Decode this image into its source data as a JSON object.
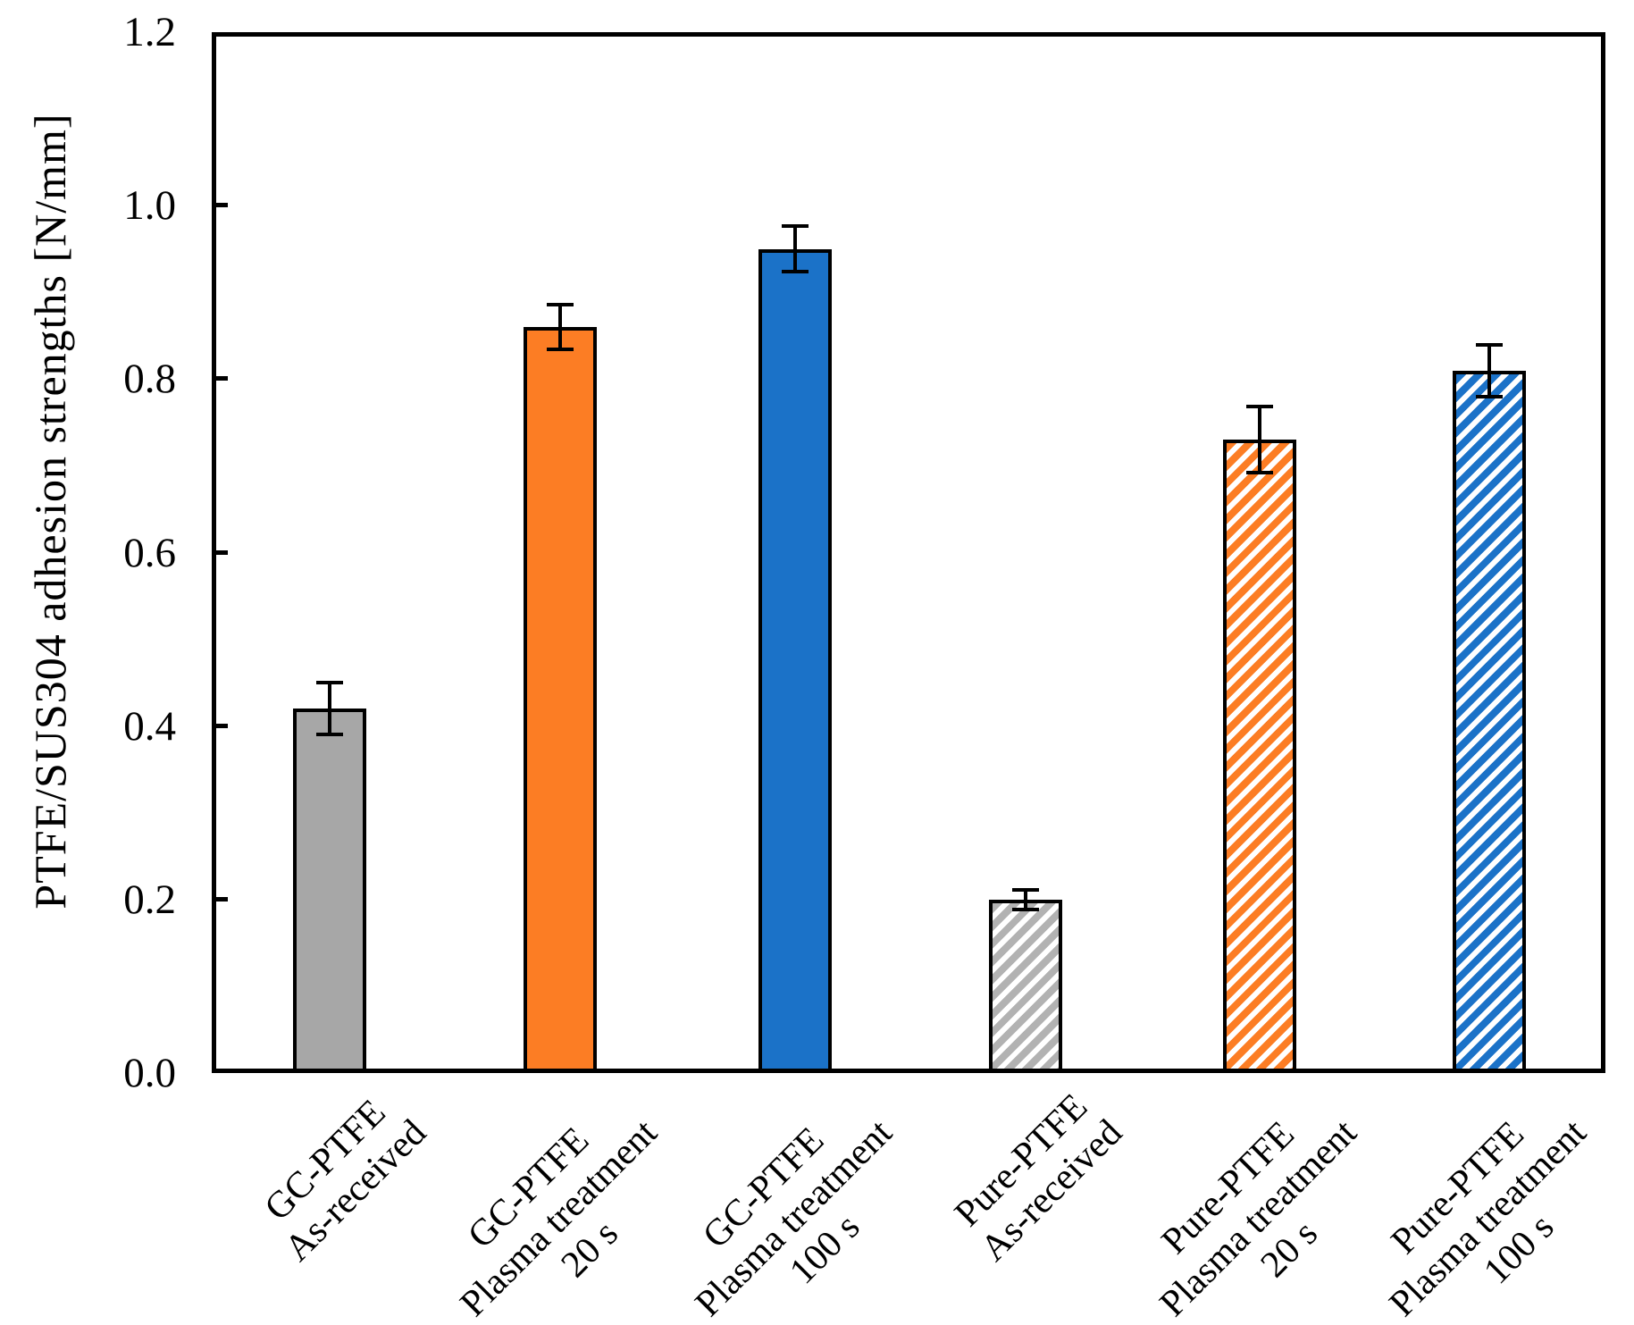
{
  "figure": {
    "background": "#ffffff",
    "colors": {
      "gray_solid": "#a7a7a7",
      "gray_hatch": "#b2b2b2",
      "orange": "#fc7d24",
      "blue": "#1b72c8",
      "bar_edge": "#000000",
      "error_bar": "#000000",
      "axis": "#000000"
    }
  },
  "chart_data": {
    "type": "bar",
    "title": "",
    "xlabel": "",
    "ylabel": "PTFE/SUS304 adhesion strengths [N/mm]",
    "ylim": [
      0.0,
      1.2
    ],
    "yticks": [
      0.0,
      0.2,
      0.4,
      0.6,
      0.8,
      1.0,
      1.2
    ],
    "ytick_labels": [
      "0.0",
      "0.2",
      "0.4",
      "0.6",
      "0.8",
      "1.0",
      "1.2"
    ],
    "grid": false,
    "legend": "none",
    "error_bars": true,
    "hatch_direction": "/",
    "categories": [
      "GC-PTFE As-received",
      "GC-PTFE Plasma treatment 20 s",
      "GC-PTFE Plasma treatment 100 s",
      "Pure-PTFE As-received",
      "Pure-PTFE Plasma treatment 20 s",
      "Pure-PTFE Plasma treatment 100 s"
    ],
    "values": [
      0.42,
      0.86,
      0.95,
      0.2,
      0.73,
      0.81
    ],
    "errors": [
      0.03,
      0.026,
      0.026,
      0.011,
      0.038,
      0.03
    ],
    "bars": [
      {
        "label_lines": [
          "GC-PTFE",
          "As-received"
        ],
        "value": 0.42,
        "error": 0.03,
        "fill": "#a7a7a7",
        "hatch": "none"
      },
      {
        "label_lines": [
          "GC-PTFE",
          "Plasma treatment",
          "20 s"
        ],
        "value": 0.86,
        "error": 0.026,
        "fill": "#fc7d24",
        "hatch": "none"
      },
      {
        "label_lines": [
          "GC-PTFE",
          "Plasma treatment",
          "100 s"
        ],
        "value": 0.95,
        "error": 0.026,
        "fill": "#1b72c8",
        "hatch": "none"
      },
      {
        "label_lines": [
          "Pure-PTFE",
          "As-received"
        ],
        "value": 0.2,
        "error": 0.011,
        "fill": "#b2b2b2",
        "hatch": "diagonal"
      },
      {
        "label_lines": [
          "Pure-PTFE",
          "Plasma treatment",
          "20 s"
        ],
        "value": 0.73,
        "error": 0.038,
        "fill": "#fc7d24",
        "hatch": "diagonal"
      },
      {
        "label_lines": [
          "Pure-PTFE",
          "Plasma treatment",
          "100 s"
        ],
        "value": 0.81,
        "error": 0.03,
        "fill": "#1b72c8",
        "hatch": "diagonal"
      }
    ],
    "bar_edge_color": "#000000",
    "error_bar_color": "#000000"
  }
}
